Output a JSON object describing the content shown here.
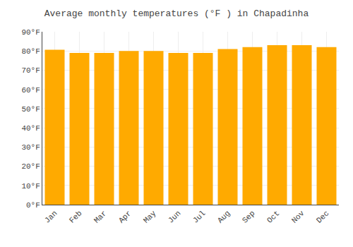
{
  "chart_data": {
    "type": "bar",
    "title": "Average monthly temperatures (°F ) in Chapadinha",
    "categories": [
      "Jan",
      "Feb",
      "Mar",
      "Apr",
      "May",
      "Jun",
      "Jul",
      "Aug",
      "Sep",
      "Oct",
      "Nov",
      "Dec"
    ],
    "values": [
      80.6,
      79.0,
      79.0,
      80.0,
      80.0,
      79.0,
      79.0,
      81.0,
      82.0,
      83.0,
      83.0,
      82.0
    ],
    "color": "#FFAA00",
    "ylim": [
      0,
      90
    ],
    "yticks": [
      {
        "value": 0,
        "label": "0°F"
      },
      {
        "value": 10,
        "label": "10°F"
      },
      {
        "value": 20,
        "label": "20°F"
      },
      {
        "value": 30,
        "label": "30°F"
      },
      {
        "value": 40,
        "label": "40°F"
      },
      {
        "value": 50,
        "label": "50°F"
      },
      {
        "value": 60,
        "label": "60°F"
      },
      {
        "value": 70,
        "label": "70°F"
      },
      {
        "value": 80,
        "label": "80°F"
      },
      {
        "value": 90,
        "label": "90°F"
      }
    ],
    "grid": true
  }
}
